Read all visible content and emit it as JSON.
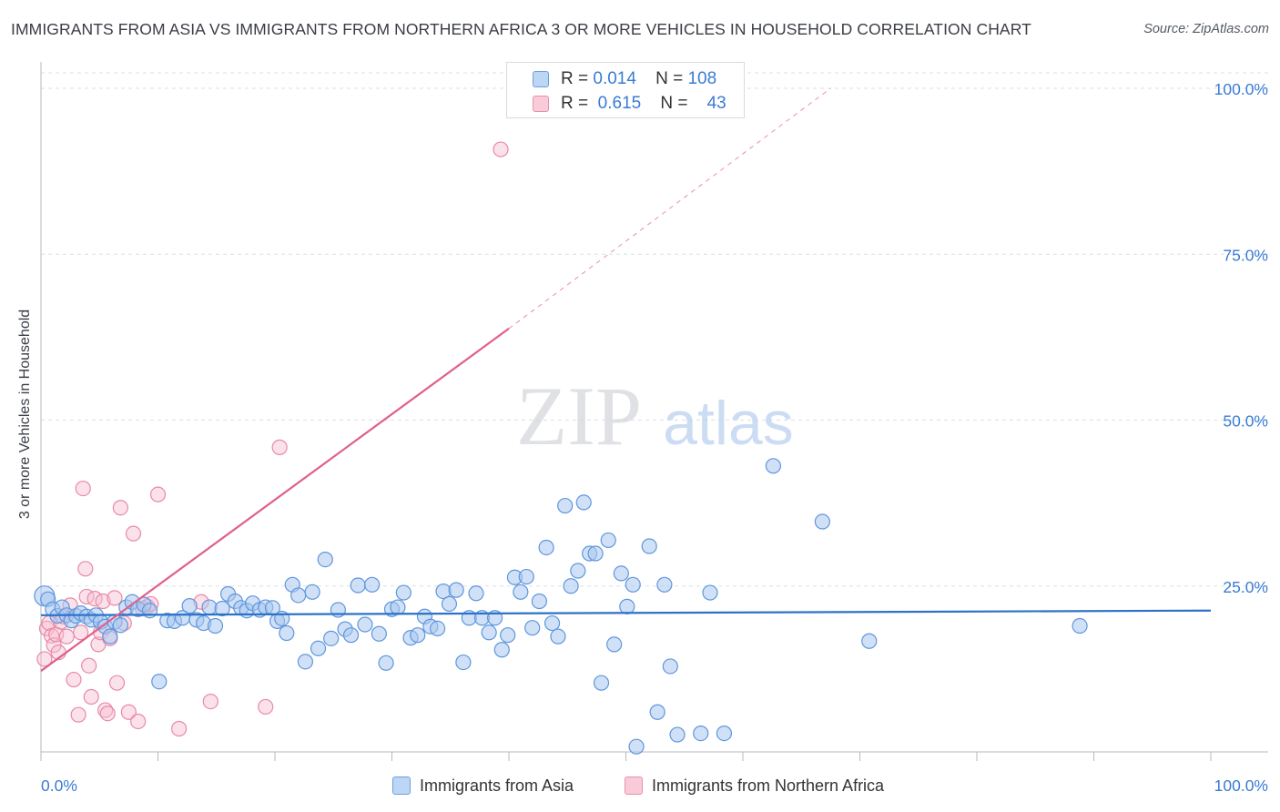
{
  "title": "IMMIGRANTS FROM ASIA VS IMMIGRANTS FROM NORTHERN AFRICA 3 OR MORE VEHICLES IN HOUSEHOLD CORRELATION CHART",
  "source": "Source: ZipAtlas.com",
  "watermark": {
    "zip": "ZIP",
    "atlas": "atlas"
  },
  "legend": {
    "asia": {
      "r_label": "R =",
      "r_value": "0.014",
      "n_label": "N =",
      "n_value": "108"
    },
    "nafrica": {
      "r_label": "R =",
      "r_value": "0.615",
      "n_label": "N =",
      "n_value": "43"
    }
  },
  "bottom_legend": {
    "asia": "Immigrants from Asia",
    "nafrica": "Immigrants from Northern Africa"
  },
  "colors": {
    "asia_fill": "#a9c9f0",
    "asia_stroke": "#5f96dc",
    "asia_line": "#2d72c8",
    "nafrica_fill": "#f7bfd0",
    "nafrica_stroke": "#e889a8",
    "nafrica_line": "#e0608a",
    "grid": "#dcdfe4",
    "tick_label": "#3a7bd5"
  },
  "chart_data": {
    "type": "scatter",
    "title": "IMMIGRANTS FROM ASIA VS IMMIGRANTS FROM NORTHERN AFRICA 3 OR MORE VEHICLES IN HOUSEHOLD CORRELATION CHART",
    "xlabel": "",
    "ylabel": "3 or more Vehicles in Household",
    "xlim": [
      0,
      100
    ],
    "ylim": [
      0,
      100
    ],
    "x_tick_labels": [
      "0.0%",
      "100.0%"
    ],
    "y_ticks": [
      25,
      50,
      75,
      100
    ],
    "y_tick_labels": [
      "25.0%",
      "50.0%",
      "75.0%",
      "100.0%"
    ],
    "series": [
      {
        "name": "Immigrants from Asia",
        "R": 0.014,
        "N": 108,
        "trend": {
          "x0": 0,
          "y0": 20.6,
          "x1": 100,
          "y1": 21.3
        },
        "points": [
          [
            0.3,
            23.5
          ],
          [
            0.6,
            23.0
          ],
          [
            1.0,
            21.5
          ],
          [
            1.4,
            20.5
          ],
          [
            1.8,
            21.8
          ],
          [
            2.2,
            20.6
          ],
          [
            2.6,
            19.8
          ],
          [
            3.0,
            20.5
          ],
          [
            3.4,
            20.9
          ],
          [
            3.9,
            20.4
          ],
          [
            4.3,
            19.9
          ],
          [
            4.7,
            20.6
          ],
          [
            5.1,
            19.6
          ],
          [
            5.5,
            18.9
          ],
          [
            5.9,
            17.4
          ],
          [
            6.3,
            19.6
          ],
          [
            6.8,
            19.1
          ],
          [
            7.3,
            21.8
          ],
          [
            7.8,
            22.6
          ],
          [
            8.3,
            21.5
          ],
          [
            8.8,
            22.2
          ],
          [
            9.3,
            21.3
          ],
          [
            10.1,
            10.6
          ],
          [
            10.8,
            19.8
          ],
          [
            11.4,
            19.7
          ],
          [
            12.1,
            20.2
          ],
          [
            12.7,
            22.0
          ],
          [
            13.3,
            19.9
          ],
          [
            13.9,
            19.4
          ],
          [
            14.4,
            21.8
          ],
          [
            14.9,
            19.0
          ],
          [
            15.5,
            21.6
          ],
          [
            16.0,
            23.8
          ],
          [
            16.6,
            22.7
          ],
          [
            17.1,
            21.7
          ],
          [
            17.6,
            21.3
          ],
          [
            18.1,
            22.4
          ],
          [
            18.7,
            21.4
          ],
          [
            19.2,
            21.8
          ],
          [
            19.8,
            21.7
          ],
          [
            20.2,
            19.7
          ],
          [
            20.6,
            20.1
          ],
          [
            21.0,
            17.9
          ],
          [
            21.5,
            25.2
          ],
          [
            22.0,
            23.6
          ],
          [
            22.6,
            13.6
          ],
          [
            23.2,
            24.1
          ],
          [
            23.7,
            15.6
          ],
          [
            24.3,
            29.0
          ],
          [
            24.8,
            17.1
          ],
          [
            25.4,
            21.4
          ],
          [
            26.0,
            18.5
          ],
          [
            26.5,
            17.6
          ],
          [
            27.1,
            25.1
          ],
          [
            27.7,
            19.2
          ],
          [
            28.3,
            25.2
          ],
          [
            28.9,
            17.8
          ],
          [
            29.5,
            13.4
          ],
          [
            30.0,
            21.5
          ],
          [
            30.5,
            21.8
          ],
          [
            31.0,
            24.0
          ],
          [
            31.6,
            17.2
          ],
          [
            32.2,
            17.6
          ],
          [
            32.8,
            20.4
          ],
          [
            33.3,
            18.9
          ],
          [
            33.9,
            18.6
          ],
          [
            34.4,
            24.2
          ],
          [
            34.9,
            22.3
          ],
          [
            35.5,
            24.4
          ],
          [
            36.1,
            13.5
          ],
          [
            36.6,
            20.2
          ],
          [
            37.2,
            23.9
          ],
          [
            37.7,
            20.2
          ],
          [
            38.3,
            18.0
          ],
          [
            38.8,
            20.2
          ],
          [
            39.4,
            15.4
          ],
          [
            39.9,
            17.6
          ],
          [
            40.5,
            26.3
          ],
          [
            41.0,
            24.1
          ],
          [
            41.5,
            26.4
          ],
          [
            42.0,
            18.7
          ],
          [
            42.6,
            22.7
          ],
          [
            43.2,
            30.8
          ],
          [
            43.7,
            19.4
          ],
          [
            44.2,
            17.4
          ],
          [
            44.8,
            37.1
          ],
          [
            45.3,
            25.0
          ],
          [
            45.9,
            27.3
          ],
          [
            46.4,
            37.6
          ],
          [
            46.9,
            29.9
          ],
          [
            47.4,
            29.9
          ],
          [
            47.9,
            10.4
          ],
          [
            48.5,
            31.9
          ],
          [
            49.0,
            16.2
          ],
          [
            49.6,
            26.9
          ],
          [
            50.1,
            21.9
          ],
          [
            50.6,
            25.2
          ],
          [
            50.9,
            0.8
          ],
          [
            52.0,
            31.0
          ],
          [
            52.7,
            6.0
          ],
          [
            53.3,
            25.2
          ],
          [
            53.8,
            12.9
          ],
          [
            54.4,
            2.6
          ],
          [
            56.4,
            2.8
          ],
          [
            57.2,
            24.0
          ],
          [
            58.4,
            2.8
          ],
          [
            62.6,
            43.1
          ],
          [
            66.8,
            34.7
          ],
          [
            70.8,
            16.7
          ],
          [
            88.8,
            19.0
          ]
        ]
      },
      {
        "name": "Immigrants from Northern Africa",
        "R": 0.615,
        "N": 43,
        "trend": {
          "x0": 0,
          "y0": 12.2,
          "x1": 40.0,
          "y1": 63.8
        },
        "trend_extension": {
          "x0": 40.0,
          "y0": 63.8,
          "x1": 67.5,
          "y1": 100
        },
        "points": [
          [
            0.3,
            14.0
          ],
          [
            0.5,
            18.6
          ],
          [
            0.7,
            19.4
          ],
          [
            0.9,
            17.5
          ],
          [
            1.1,
            16.1
          ],
          [
            1.3,
            17.7
          ],
          [
            1.5,
            15.0
          ],
          [
            1.7,
            19.6
          ],
          [
            1.9,
            20.4
          ],
          [
            2.2,
            17.4
          ],
          [
            2.5,
            22.1
          ],
          [
            2.8,
            10.9
          ],
          [
            3.2,
            5.6
          ],
          [
            3.4,
            18.0
          ],
          [
            3.6,
            39.7
          ],
          [
            3.8,
            27.6
          ],
          [
            3.9,
            23.4
          ],
          [
            4.1,
            13.0
          ],
          [
            4.3,
            8.3
          ],
          [
            4.6,
            23.1
          ],
          [
            4.9,
            16.2
          ],
          [
            5.1,
            18.0
          ],
          [
            5.3,
            22.7
          ],
          [
            5.5,
            6.3
          ],
          [
            5.7,
            5.8
          ],
          [
            5.9,
            17.1
          ],
          [
            6.3,
            23.2
          ],
          [
            6.5,
            10.4
          ],
          [
            6.8,
            36.8
          ],
          [
            7.1,
            19.4
          ],
          [
            7.5,
            6.0
          ],
          [
            7.9,
            32.9
          ],
          [
            8.3,
            4.6
          ],
          [
            8.7,
            21.6
          ],
          [
            9.1,
            21.9
          ],
          [
            9.4,
            22.3
          ],
          [
            10.0,
            38.8
          ],
          [
            11.8,
            3.5
          ],
          [
            13.7,
            22.6
          ],
          [
            14.5,
            7.6
          ],
          [
            19.2,
            6.8
          ],
          [
            20.4,
            45.9
          ],
          [
            39.3,
            90.8
          ]
        ]
      }
    ]
  }
}
